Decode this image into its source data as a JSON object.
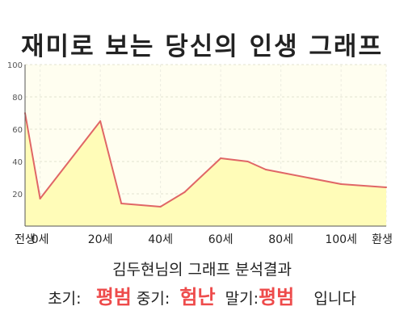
{
  "title": "재미로 보는 당신의 인생 그래프",
  "subtitle": "김두현님의 그래프 분석결과",
  "summary": {
    "early_label": "초기:",
    "early_value": "평범",
    "middle_label": "중기:",
    "middle_value": "험난",
    "late_label": "말기:",
    "late_value": "평범",
    "ending": "입니다"
  },
  "colors": {
    "line": "#e06666",
    "fill": "#fffcb8",
    "plot_background": "#fffef0",
    "highlight_text": "#ee4b4b"
  },
  "chart_data": {
    "type": "area",
    "x": [
      -5,
      0,
      20,
      27,
      40,
      48,
      60,
      69,
      75,
      100,
      115
    ],
    "y": [
      70,
      17,
      65,
      14,
      12,
      21,
      42,
      40,
      35,
      26,
      24
    ],
    "xlim": [
      -5,
      115
    ],
    "ylim": [
      0,
      100
    ],
    "yticks": [
      20,
      40,
      60,
      80,
      100
    ],
    "xtick_values": [
      -5,
      0,
      20,
      40,
      60,
      80,
      100,
      115
    ],
    "xtick_labels": [
      "전생",
      "0세",
      "20세",
      "40세",
      "60세",
      "80세",
      "100세",
      "환생"
    ],
    "grid": true
  }
}
